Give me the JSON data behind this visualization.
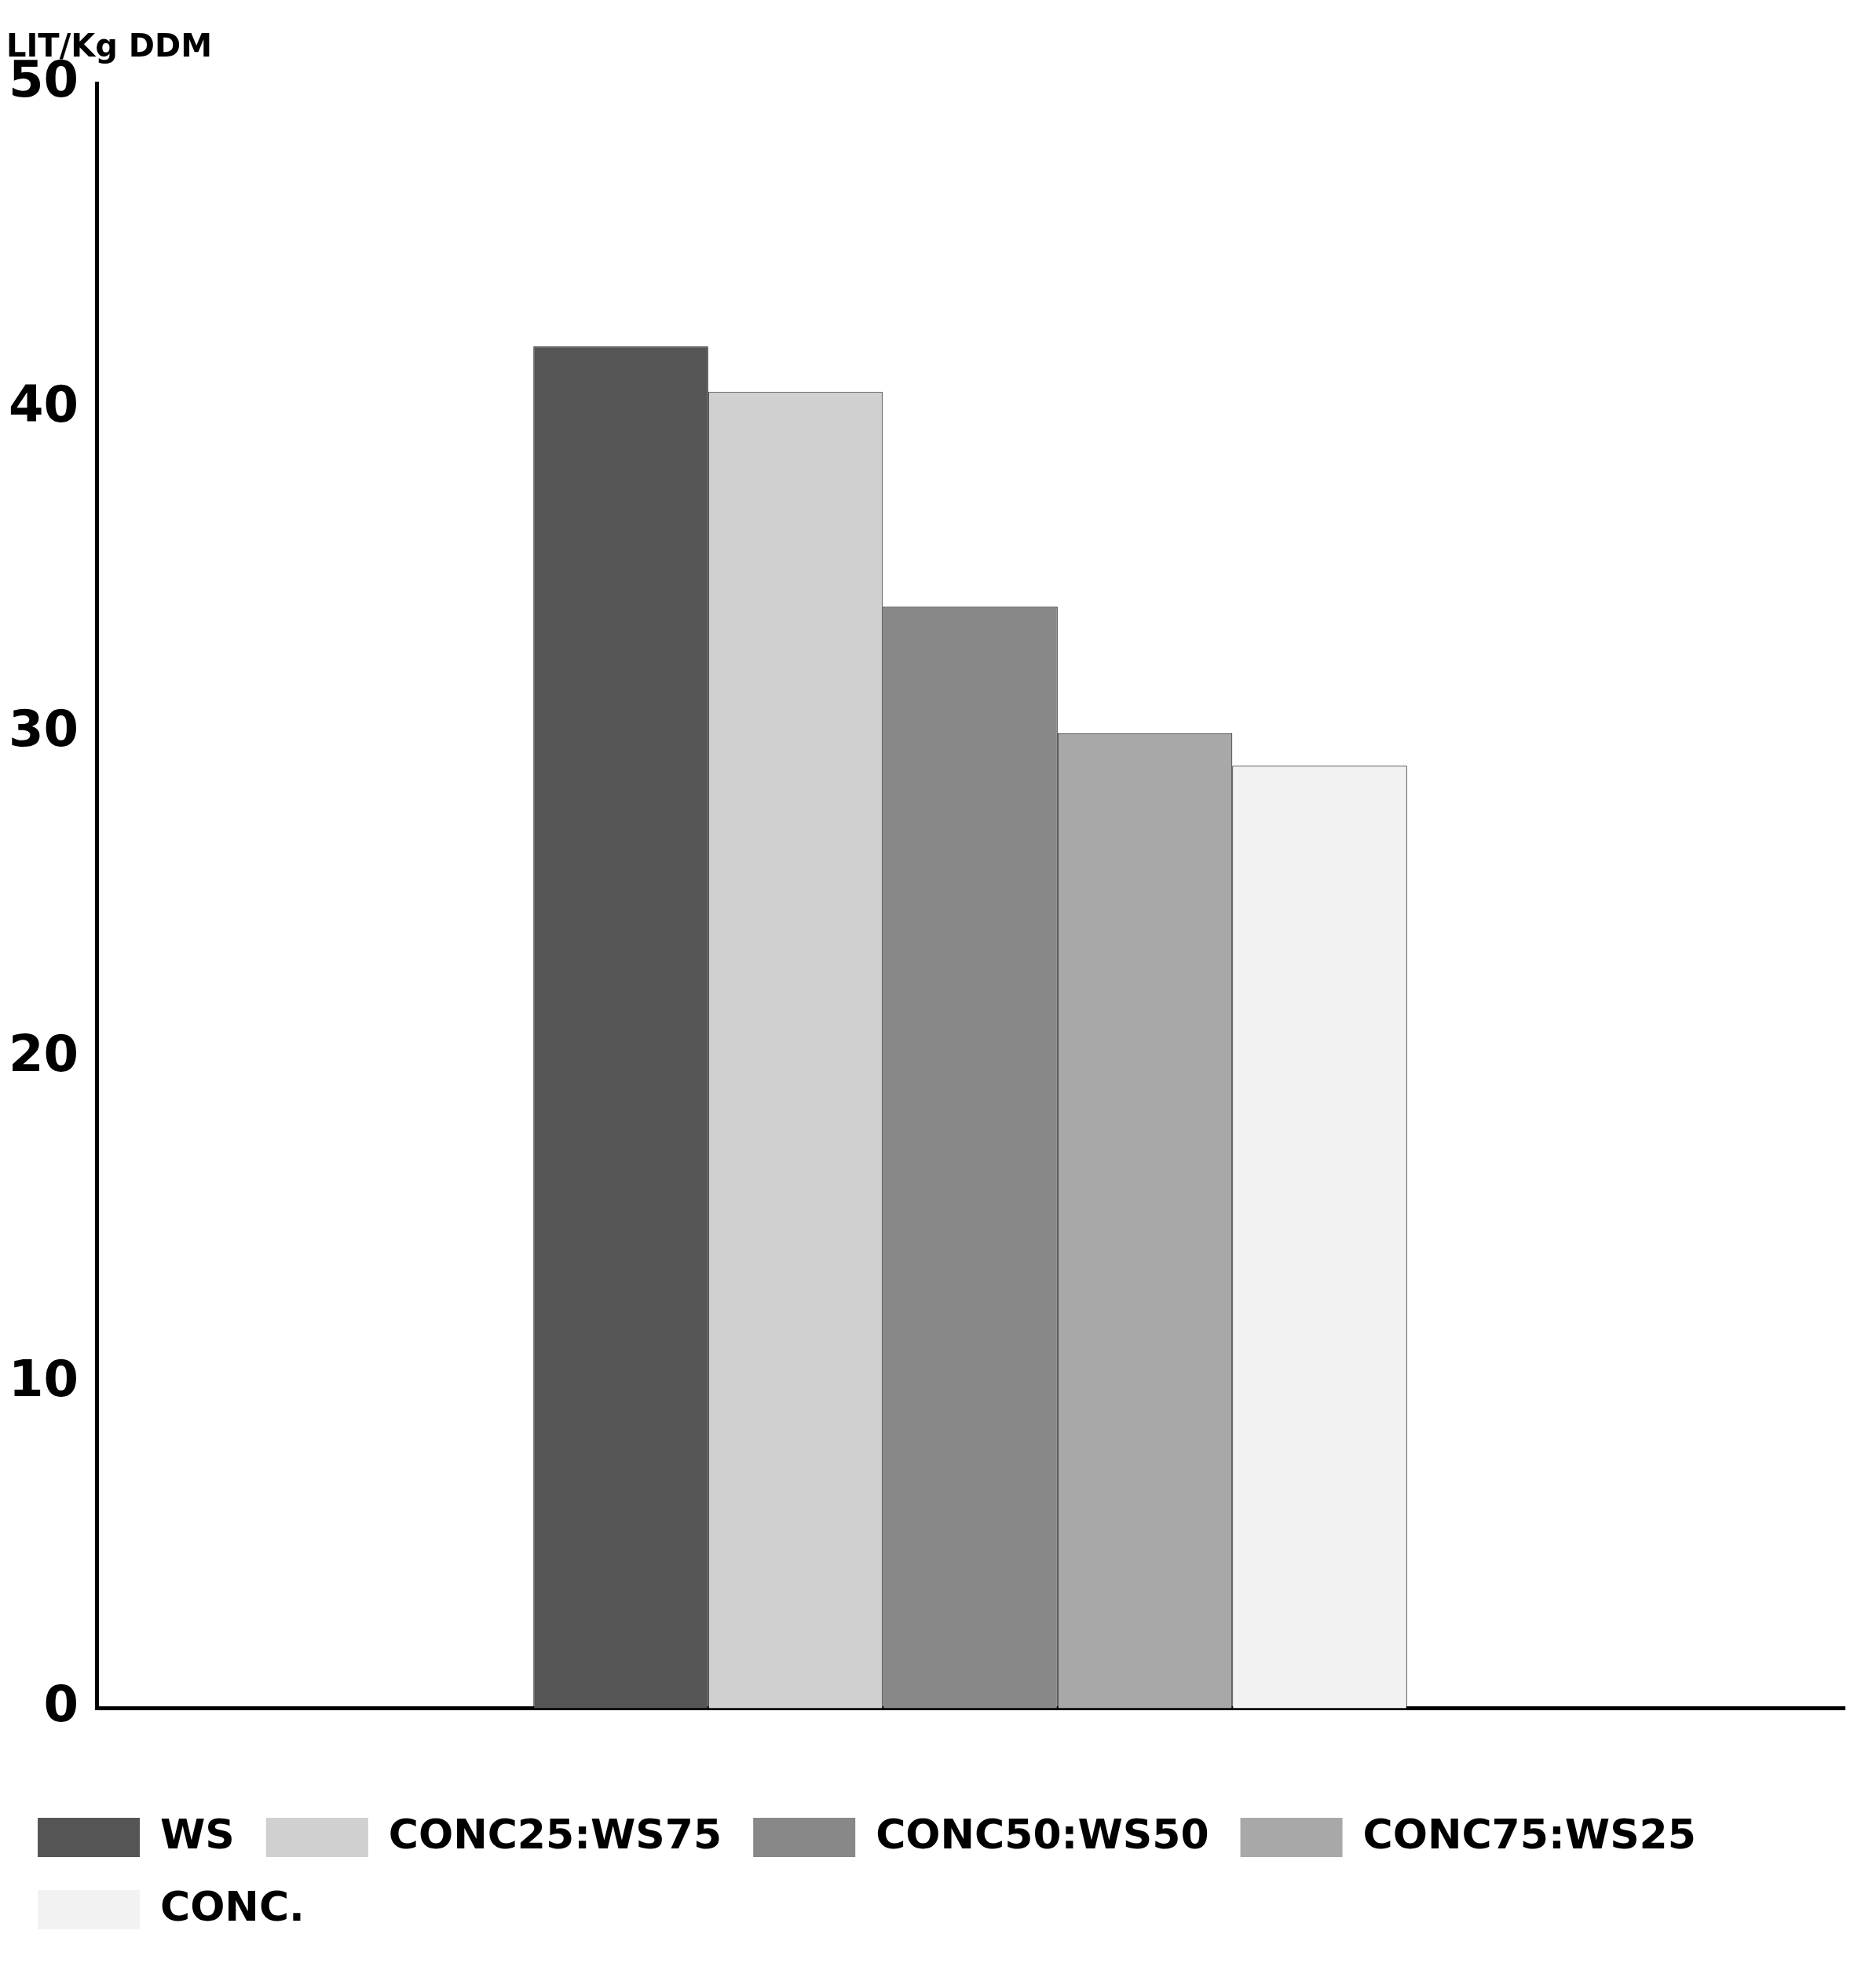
{
  "chart_data": {
    "type": "bar",
    "ylabel": "LIT/Kg DDM",
    "categories": [
      null
    ],
    "series": [
      {
        "name": "WS",
        "color": "#555555",
        "values": [
          41.9
        ]
      },
      {
        "name": "CONC25:WS75",
        "color": "#d0d0d0",
        "values": [
          40.5
        ]
      },
      {
        "name": "CONC50:WS50",
        "color": "#888888",
        "values": [
          33.9
        ]
      },
      {
        "name": "CONC75:WS25",
        "color": "#a8a8a8",
        "values": [
          30
        ]
      },
      {
        "name": "CONC.",
        "color": "#f2f2f2",
        "values": [
          29
        ]
      }
    ],
    "ylim": [
      0,
      50
    ],
    "yticks": [
      0,
      10,
      20,
      30,
      40,
      50
    ],
    "grid": false,
    "legend": "bottom"
  }
}
